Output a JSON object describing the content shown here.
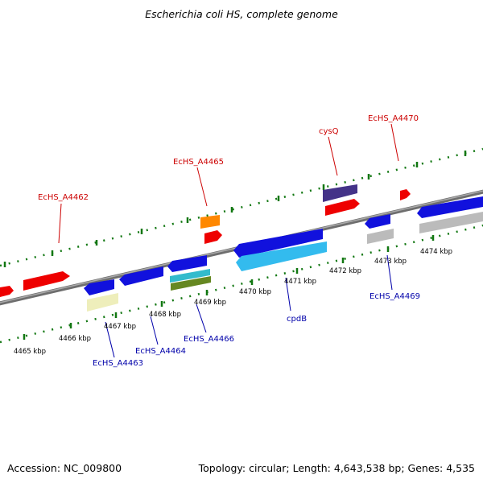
{
  "title": "Escherichia coli HS, complete genome",
  "footer": {
    "accession": "Accession: NC_009800",
    "summary": "Topology: circular; Length: 4,643,538 bp; Genes: 4,535"
  },
  "colors": {
    "forward_label": "#cc0000",
    "reverse_label": "#0000aa",
    "backbone": "#888888",
    "dots": "#117711"
  },
  "ticks": [
    "4465 kbp",
    "4466 kbp",
    "4467 kbp",
    "4468 kbp",
    "4469 kbp",
    "4470 kbp",
    "4471 kbp",
    "4472 kbp",
    "4473 kbp",
    "4474 kbp"
  ],
  "gene_labels": {
    "forward": [
      "EcHS_A4462",
      "EcHS_A4465",
      "cysQ",
      "EcHS_A4470"
    ],
    "reverse": [
      "EcHS_A4463",
      "EcHS_A4464",
      "EcHS_A4466",
      "cpdB",
      "EcHS_A4469"
    ]
  }
}
